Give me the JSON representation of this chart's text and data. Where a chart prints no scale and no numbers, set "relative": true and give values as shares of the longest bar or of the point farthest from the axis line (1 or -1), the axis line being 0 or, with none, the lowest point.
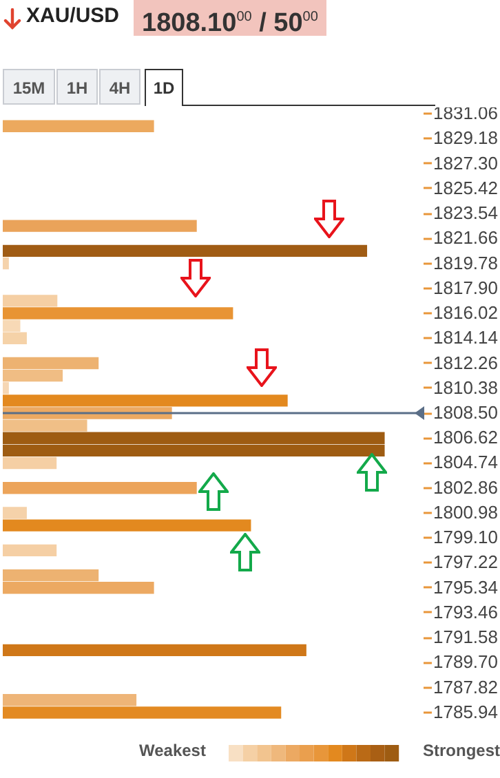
{
  "chart_data": {
    "type": "bar",
    "orientation": "horizontal",
    "relative": true,
    "title": "XAU/USD",
    "subtitle": "1808.10$^{00}$ / 50$^{00}$",
    "categories": [
      "1831.06",
      null,
      "1829.18",
      null,
      "1827.30",
      null,
      "1825.42",
      null,
      "1823.54",
      null,
      "1821.66",
      null,
      "1819.78",
      null,
      "1817.90",
      null,
      "1816.02",
      null,
      "1814.14",
      null,
      "1812.26",
      null,
      "1810.38",
      null,
      "1808.50",
      null,
      "1806.62",
      null,
      "1804.74",
      null,
      "1802.86",
      null,
      "1800.98",
      null,
      "1799.10",
      null,
      "1797.22",
      null,
      "1795.34",
      null,
      "1793.46",
      null,
      "1791.58",
      null,
      "1789.70",
      null,
      "1787.82",
      null,
      "1785.94"
    ],
    "values": [
      null,
      0.396,
      null,
      null,
      null,
      null,
      null,
      null,
      null,
      0.508,
      null,
      0.954,
      0.016,
      null,
      null,
      0.143,
      0.603,
      0.046,
      0.063,
      null,
      0.251,
      0.157,
      0.016,
      0.746,
      0.443,
      0.221,
      1,
      1,
      0.141,
      null,
      0.508,
      null,
      0.063,
      0.65,
      null,
      0.141,
      null,
      0.251,
      0.396,
      null,
      null,
      null,
      null,
      0.795,
      null,
      null,
      null,
      0.35,
      0.729
    ],
    "colors": [
      null,
      "#eca95e",
      null,
      null,
      null,
      null,
      null,
      null,
      null,
      "#eaa35a",
      null,
      "#a05c14",
      "#f5d3ac",
      null,
      null,
      "#f5cfa4",
      "#e89434",
      "#f7d9b6",
      "#f5d2a8",
      null,
      "#edb271",
      "#f0bd84",
      "#f6d7b4",
      "#e3891f",
      "#eca962",
      "#f0bf87",
      "#9e5c12",
      "#9e5c12",
      "#f5cfa4",
      null,
      "#eca45a",
      null,
      "#f5d2aa",
      "#e3891f",
      null,
      "#f5cfa4",
      null,
      "#edb271",
      "#eca962",
      null,
      null,
      null,
      null,
      "#cf7718",
      null,
      null,
      null,
      "#eeb578",
      "#e38a22"
    ],
    "ref_lines": [
      {
        "axis": "y",
        "value": "1808.50",
        "color": "#5a6e87"
      }
    ],
    "annotations": [
      "15M",
      "1H",
      "4H",
      "1D",
      "Weakest",
      "Strongest"
    ]
  }
}
